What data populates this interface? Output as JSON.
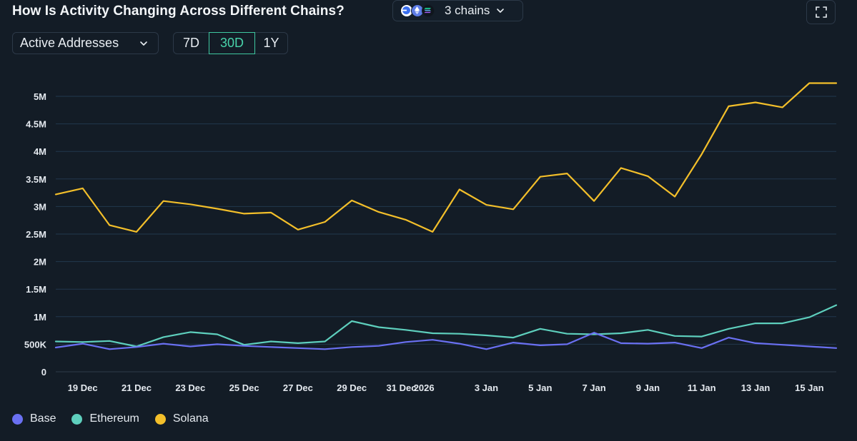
{
  "header": {
    "title": "How Is Activity Changing Across Different Chains?",
    "chains_label": "3 chains",
    "chain_logos": [
      {
        "name": "base-logo",
        "color": "#4f6ff0"
      },
      {
        "name": "ethereum-logo",
        "color": "#5d7ce6"
      },
      {
        "name": "solana-logo",
        "color": "#0f151c"
      }
    ]
  },
  "controls": {
    "metric": "Active Addresses",
    "ranges": [
      {
        "label": "7D",
        "active": false
      },
      {
        "label": "30D",
        "active": true
      },
      {
        "label": "1Y",
        "active": false
      }
    ]
  },
  "chart_data": {
    "type": "line",
    "title": "How Is Activity Changing Across Different Chains?",
    "xlabel": "",
    "ylabel": "Active Addresses",
    "ylim": [
      0,
      5250000
    ],
    "y_ticks": [
      0,
      500000,
      1000000,
      1500000,
      2000000,
      2500000,
      3000000,
      3500000,
      4000000,
      4500000,
      5000000
    ],
    "y_tick_labels": [
      "0",
      "500K",
      "1M",
      "1.5M",
      "2M",
      "2.5M",
      "3M",
      "3.5M",
      "4M",
      "4.5M",
      "5M"
    ],
    "grid": true,
    "legend_position": "bottom-left",
    "x": [
      "18 Dec",
      "19 Dec",
      "20 Dec",
      "21 Dec",
      "22 Dec",
      "23 Dec",
      "24 Dec",
      "25 Dec",
      "26 Dec",
      "27 Dec",
      "28 Dec",
      "29 Dec",
      "30 Dec",
      "31 Dec",
      "1 Jan",
      "2 Jan",
      "3 Jan",
      "4 Jan",
      "5 Jan",
      "6 Jan",
      "7 Jan",
      "8 Jan",
      "9 Jan",
      "10 Jan",
      "11 Jan",
      "12 Jan",
      "13 Jan",
      "14 Jan",
      "15 Jan",
      "16 Jan"
    ],
    "x_tick_labels": [
      {
        "index": 1,
        "label": "19 Dec"
      },
      {
        "index": 3,
        "label": "21 Dec"
      },
      {
        "index": 5,
        "label": "23 Dec"
      },
      {
        "index": 7,
        "label": "25 Dec"
      },
      {
        "index": 9,
        "label": "27 Dec"
      },
      {
        "index": 11,
        "label": "29 Dec"
      },
      {
        "index": 13,
        "label": "31 Dec"
      },
      {
        "index": 14,
        "label": "2026"
      },
      {
        "index": 16,
        "label": "3 Jan"
      },
      {
        "index": 18,
        "label": "5 Jan"
      },
      {
        "index": 20,
        "label": "7 Jan"
      },
      {
        "index": 22,
        "label": "9 Jan"
      },
      {
        "index": 24,
        "label": "11 Jan"
      },
      {
        "index": 26,
        "label": "13 Jan"
      },
      {
        "index": 28,
        "label": "15 Jan"
      }
    ],
    "series": [
      {
        "name": "Base",
        "color": "#6a70f2",
        "values": [
          440000,
          510000,
          410000,
          450000,
          510000,
          460000,
          500000,
          470000,
          450000,
          430000,
          410000,
          450000,
          470000,
          540000,
          580000,
          510000,
          410000,
          530000,
          480000,
          500000,
          710000,
          520000,
          510000,
          530000,
          430000,
          620000,
          520000,
          490000,
          460000,
          430000
        ]
      },
      {
        "name": "Ethereum",
        "color": "#5ecfbd",
        "values": [
          550000,
          540000,
          560000,
          460000,
          630000,
          720000,
          680000,
          490000,
          550000,
          520000,
          550000,
          920000,
          810000,
          760000,
          700000,
          690000,
          660000,
          620000,
          780000,
          690000,
          680000,
          700000,
          760000,
          650000,
          640000,
          780000,
          880000,
          880000,
          990000,
          1210000
        ]
      },
      {
        "name": "Solana",
        "color": "#f3bf2a",
        "values": [
          3220000,
          3330000,
          2660000,
          2540000,
          3100000,
          3040000,
          2960000,
          2870000,
          2890000,
          2580000,
          2720000,
          3110000,
          2900000,
          2760000,
          2540000,
          3310000,
          3030000,
          2950000,
          3540000,
          3600000,
          3100000,
          3700000,
          3550000,
          3180000,
          3950000,
          4820000,
          4890000,
          4800000,
          5240000,
          5240000
        ]
      }
    ]
  }
}
